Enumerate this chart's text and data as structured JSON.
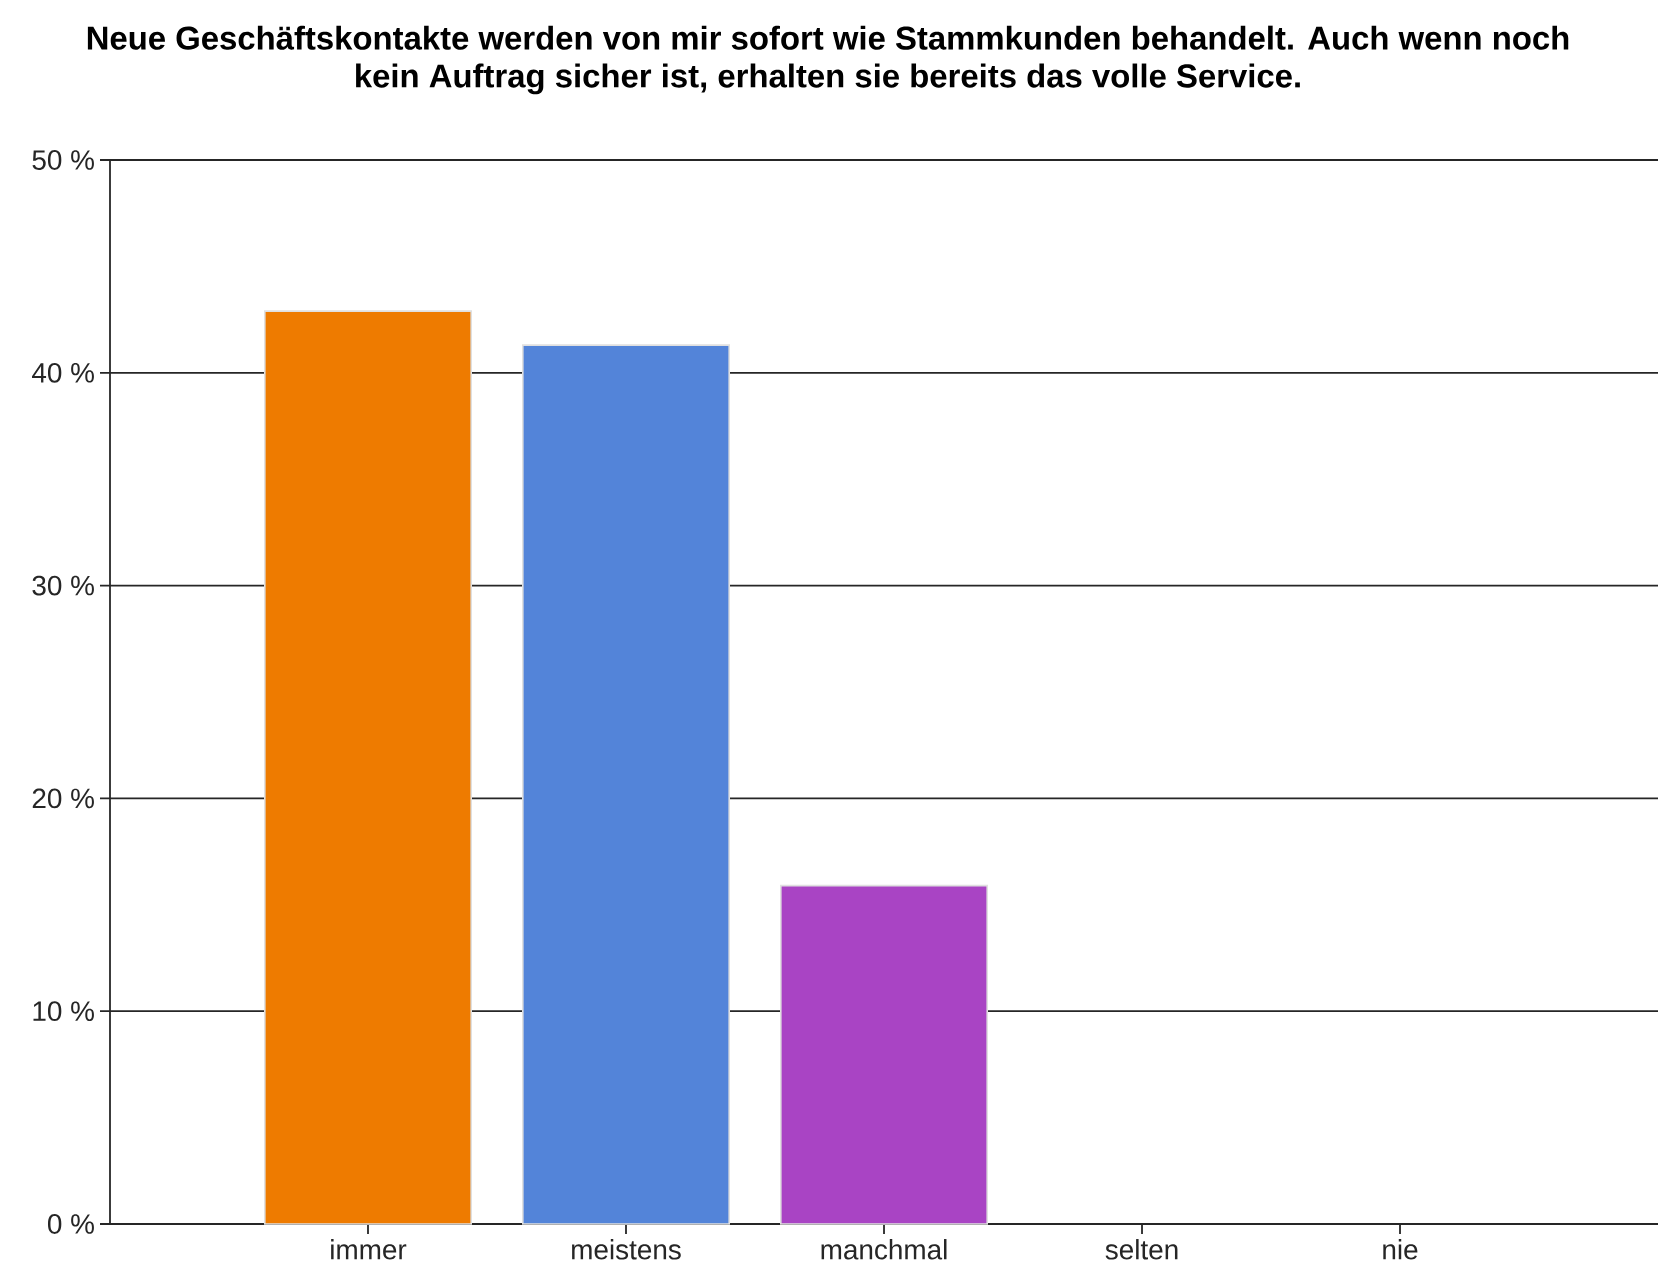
{
  "chart_data": {
    "type": "bar",
    "title": "Neue Geschäftskontakte werden von mir sofort wie Stammkunden behandelt. Auch wenn noch kein Auftrag sicher ist, erhalten sie bereits das volle Service.",
    "categories": [
      "immer",
      "meistens",
      "manchmal",
      "selten",
      "nie"
    ],
    "values": [
      42.9,
      41.3,
      15.9,
      0,
      0
    ],
    "colors": [
      "#ee7b00",
      "#5384d9",
      "#a944c4",
      null,
      null
    ],
    "ylim": [
      0,
      50
    ],
    "yticks": [
      {
        "value": 0,
        "label": "0 %"
      },
      {
        "value": 10,
        "label": "10 %"
      },
      {
        "value": 20,
        "label": "20 %"
      },
      {
        "value": 30,
        "label": "30 %"
      },
      {
        "value": 40,
        "label": "40 %"
      },
      {
        "value": 50,
        "label": "50 %"
      }
    ],
    "grid": "y"
  }
}
